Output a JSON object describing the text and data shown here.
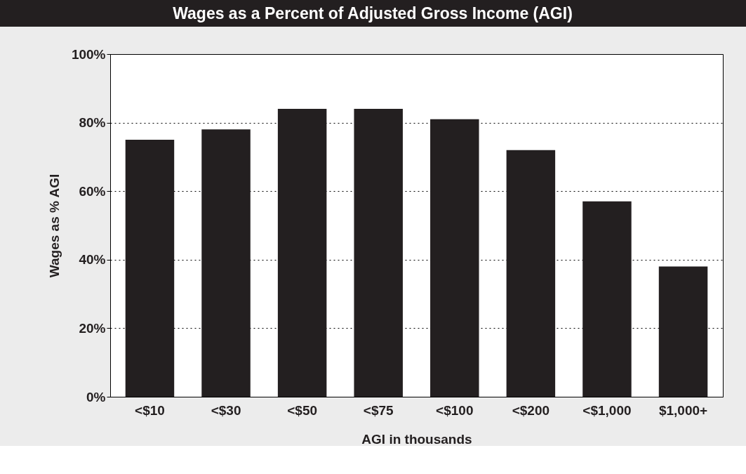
{
  "chart_data": {
    "type": "bar",
    "title": "Wages as a Percent of Adjusted Gross Income (AGI)",
    "xlabel": "AGI in thousands",
    "ylabel": "Wages as % AGI",
    "categories": [
      "<$10",
      "<$30",
      "<$50",
      "<$75",
      "<$100",
      "<$200",
      "<$1,000",
      "$1,000+"
    ],
    "values": [
      75,
      78,
      84,
      84,
      81,
      72,
      57,
      38
    ],
    "color": "#231f20",
    "ylim": [
      0,
      100
    ],
    "yticks": [
      {
        "value": 0,
        "label": "0%"
      },
      {
        "value": 20,
        "label": "20%"
      },
      {
        "value": 40,
        "label": "40%"
      },
      {
        "value": 60,
        "label": "60%"
      },
      {
        "value": 80,
        "label": "80%"
      },
      {
        "value": 100,
        "label": "100%"
      }
    ],
    "grid": "y"
  }
}
